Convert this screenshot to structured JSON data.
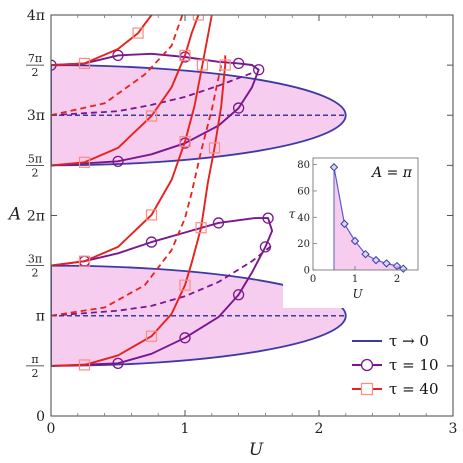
{
  "chart_data": [
    {
      "type": "line",
      "title": "",
      "xlabel": "U",
      "ylabel": "A",
      "xlim": [
        0,
        3
      ],
      "ylim": [
        0,
        12.566
      ],
      "x_ticks": [
        "0",
        "1",
        "2",
        "3"
      ],
      "y_ticks": [
        {
          "value": 0,
          "label": "0"
        },
        {
          "value": 1.5708,
          "num": "π",
          "den": "2"
        },
        {
          "value": 3.1416,
          "label": "π"
        },
        {
          "value": 4.7124,
          "num": "3π",
          "den": "2"
        },
        {
          "value": 6.2832,
          "label": "2π"
        },
        {
          "value": 7.854,
          "num": "5π",
          "den": "2"
        },
        {
          "value": 9.4248,
          "label": "3π"
        },
        {
          "value": 10.9956,
          "num": "7π",
          "den": "2"
        },
        {
          "value": 12.566,
          "label": "4π"
        }
      ],
      "legend_position": "bottom-right",
      "colors": {
        "tau0": "#3d3aa6",
        "tau10": "#7b1590",
        "tau40": "#e8211d",
        "fill": "#f7cdef",
        "marker_square": "#ff8a80"
      },
      "series": [
        {
          "name": "τ → 0",
          "color": "#3d3aa6",
          "marker": "none",
          "branches": [
            {
              "center": 3.1416,
              "half_height": 1.5708,
              "umax": 2.2
            },
            {
              "center": 9.4248,
              "half_height": 1.5708,
              "umax": 2.2
            }
          ]
        },
        {
          "name": "τ = 10",
          "color": "#7b1590",
          "marker": "circle",
          "points_lower": [
            [
              0,
              1.5708
            ],
            [
              0.5,
              1.65
            ],
            [
              0.75,
              1.95
            ],
            [
              1.0,
              2.45
            ],
            [
              1.25,
              3.1
            ],
            [
              1.4,
              3.8
            ],
            [
              1.5,
              4.5
            ],
            [
              1.6,
              5.3
            ],
            [
              1.65,
              5.8
            ],
            [
              1.62,
              6.2
            ],
            [
              1.52,
              6.2
            ],
            [
              1.25,
              6.05
            ],
            [
              1.0,
              5.75
            ],
            [
              0.75,
              5.45
            ],
            [
              0.5,
              5.1
            ],
            [
              0.25,
              4.85
            ],
            [
              0,
              4.7124
            ]
          ],
          "points_upper": [
            [
              0,
              7.854
            ],
            [
              0.5,
              7.98
            ],
            [
              0.75,
              8.2
            ],
            [
              1.0,
              8.55
            ],
            [
              1.25,
              9.1
            ],
            [
              1.4,
              9.65
            ],
            [
              1.5,
              10.3
            ],
            [
              1.55,
              10.85
            ],
            [
              1.5,
              11.0
            ],
            [
              1.4,
              11.05
            ],
            [
              1.25,
              11.1
            ],
            [
              1.0,
              11.25
            ],
            [
              0.75,
              11.35
            ],
            [
              0.5,
              11.3
            ],
            [
              0.25,
              11.05
            ],
            [
              0,
              10.9956
            ]
          ],
          "dashed_lower": [
            [
              0,
              3.1416
            ],
            [
              0.5,
              3.3
            ],
            [
              0.75,
              3.45
            ],
            [
              1.0,
              3.75
            ],
            [
              1.25,
              4.2
            ],
            [
              1.5,
              4.85
            ],
            [
              1.65,
              5.35
            ]
          ],
          "dashed_upper": [
            [
              0,
              9.4248
            ],
            [
              0.5,
              9.55
            ],
            [
              0.75,
              9.75
            ],
            [
              1.0,
              10.0
            ],
            [
              1.25,
              10.35
            ],
            [
              1.5,
              10.75
            ]
          ]
        },
        {
          "name": "τ = 40",
          "color": "#e8211d",
          "marker": "square",
          "points_lower": [
            [
              0,
              1.5708
            ],
            [
              0.25,
              1.6
            ],
            [
              0.5,
              1.9
            ],
            [
              0.75,
              2.5
            ],
            [
              0.9,
              3.2
            ],
            [
              1.0,
              4.1
            ],
            [
              1.05,
              4.8
            ],
            [
              1.12,
              5.9
            ],
            [
              1.17,
              7.3
            ],
            [
              1.22,
              8.4
            ],
            [
              1.27,
              9.7
            ],
            [
              1.3,
              11.0
            ],
            [
              1.3,
              11.3
            ]
          ],
          "points_lower_b": [
            [
              0,
              4.7124
            ],
            [
              0.25,
              4.85
            ],
            [
              0.5,
              5.3
            ],
            [
              0.75,
              6.3
            ],
            [
              0.9,
              7.4
            ],
            [
              1.0,
              8.6
            ],
            [
              1.07,
              9.7
            ],
            [
              1.13,
              11.0
            ],
            [
              1.2,
              12.566
            ]
          ],
          "points_upper": [
            [
              0,
              7.854
            ],
            [
              0.25,
              7.95
            ],
            [
              0.5,
              8.4
            ],
            [
              0.75,
              9.4
            ],
            [
              0.9,
              10.3
            ],
            [
              1.0,
              11.3
            ],
            [
              1.05,
              12.0
            ],
            [
              1.1,
              12.566
            ]
          ],
          "points_upper_b": [
            [
              0,
              10.9956
            ],
            [
              0.25,
              11.05
            ],
            [
              0.5,
              11.5
            ],
            [
              0.65,
              12.0
            ],
            [
              0.75,
              12.566
            ]
          ],
          "dashed": [
            [
              [
                0,
                3.1416
              ],
              [
                0.4,
                3.4
              ],
              [
                0.7,
                4.1
              ],
              [
                0.9,
                5.2
              ],
              [
                1.0,
                6.2
              ],
              [
                1.05,
                7.0
              ],
              [
                1.12,
                8.3
              ],
              [
                1.2,
                9.6
              ],
              [
                1.27,
                11.0
              ]
            ],
            [
              [
                0,
                9.4248
              ],
              [
                0.4,
                9.8
              ],
              [
                0.7,
                10.7
              ],
              [
                0.9,
                11.6
              ],
              [
                0.98,
                12.566
              ]
            ]
          ]
        }
      ]
    },
    {
      "type": "scatter",
      "title": "",
      "annotation": "A = π",
      "xlabel": "U",
      "ylabel": "τ",
      "xlim": [
        0,
        2.5
      ],
      "ylim": [
        0,
        85
      ],
      "x_ticks": [
        "0",
        "1",
        "2"
      ],
      "y_ticks": [
        "0",
        "20",
        "40",
        "60",
        "80"
      ],
      "points": [
        [
          0.5,
          78
        ],
        [
          0.75,
          35
        ],
        [
          1.0,
          22
        ],
        [
          1.25,
          12
        ],
        [
          1.5,
          7.5
        ],
        [
          1.75,
          5
        ],
        [
          2.0,
          3
        ],
        [
          2.15,
          1
        ]
      ]
    }
  ],
  "legend": {
    "items": [
      {
        "label": "τ → 0",
        "color": "#3d3aa6",
        "marker": "none"
      },
      {
        "label": "τ = 10",
        "color": "#7b1590",
        "marker": "circle"
      },
      {
        "label": "τ = 40",
        "color": "#e8211d",
        "marker": "square"
      }
    ]
  }
}
